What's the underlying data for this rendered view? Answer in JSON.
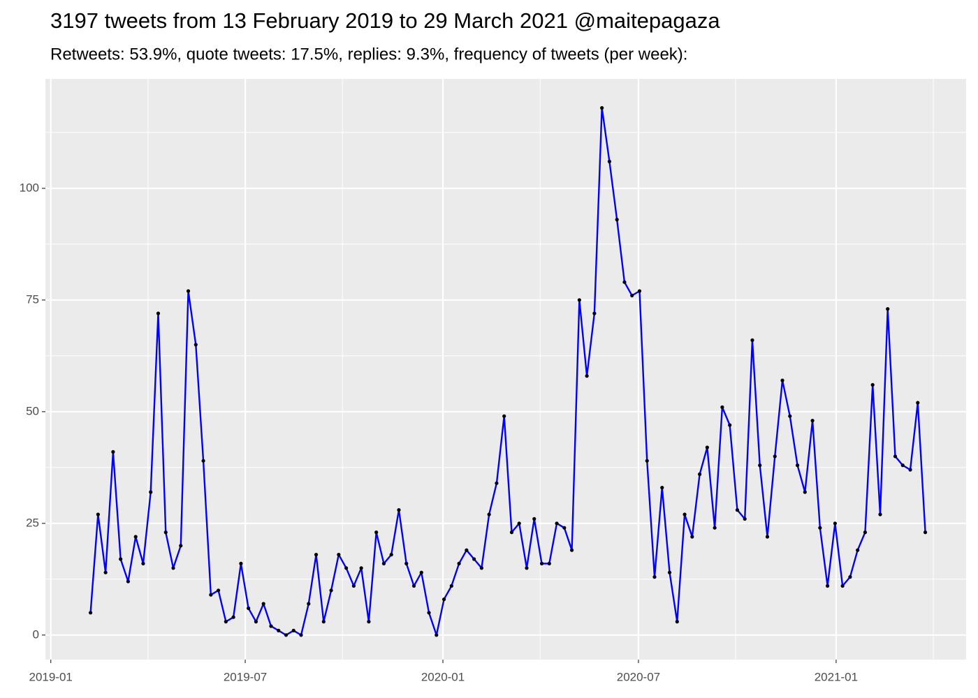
{
  "chart_data": {
    "type": "line",
    "title": "3197 tweets from 13 February 2019 to 29 March 2021 @maitepagaza",
    "subtitle": "Retweets: 53.9%, quote tweets: 17.5%, replies: 9.3%, frequency of tweets (per week):",
    "x": [
      "2019-02-07",
      "2019-02-14",
      "2019-02-21",
      "2019-02-28",
      "2019-03-07",
      "2019-03-14",
      "2019-03-21",
      "2019-03-28",
      "2019-04-04",
      "2019-04-11",
      "2019-04-18",
      "2019-04-25",
      "2019-05-02",
      "2019-05-09",
      "2019-05-16",
      "2019-05-23",
      "2019-05-30",
      "2019-06-06",
      "2019-06-13",
      "2019-06-20",
      "2019-06-27",
      "2019-07-04",
      "2019-07-11",
      "2019-07-18",
      "2019-07-25",
      "2019-08-01",
      "2019-08-08",
      "2019-08-15",
      "2019-08-22",
      "2019-08-29",
      "2019-09-05",
      "2019-09-12",
      "2019-09-19",
      "2019-09-26",
      "2019-10-03",
      "2019-10-10",
      "2019-10-17",
      "2019-10-24",
      "2019-10-31",
      "2019-11-07",
      "2019-11-14",
      "2019-11-21",
      "2019-11-28",
      "2019-12-05",
      "2019-12-12",
      "2019-12-19",
      "2019-12-26",
      "2020-01-02",
      "2020-01-09",
      "2020-01-16",
      "2020-01-23",
      "2020-01-30",
      "2020-02-06",
      "2020-02-13",
      "2020-02-20",
      "2020-02-27",
      "2020-03-05",
      "2020-03-12",
      "2020-03-19",
      "2020-03-26",
      "2020-04-02",
      "2020-04-09",
      "2020-04-16",
      "2020-04-23",
      "2020-04-30",
      "2020-05-07",
      "2020-05-14",
      "2020-05-21",
      "2020-05-28",
      "2020-06-04",
      "2020-06-11",
      "2020-06-18",
      "2020-06-25",
      "2020-07-02",
      "2020-07-09",
      "2020-07-16",
      "2020-07-23",
      "2020-07-30",
      "2020-08-06",
      "2020-08-13",
      "2020-08-20",
      "2020-08-27",
      "2020-09-03",
      "2020-09-10",
      "2020-09-17",
      "2020-09-24",
      "2020-10-01",
      "2020-10-08",
      "2020-10-15",
      "2020-10-22",
      "2020-10-29",
      "2020-11-05",
      "2020-11-12",
      "2020-11-19",
      "2020-11-26",
      "2020-12-03",
      "2020-12-10",
      "2020-12-17",
      "2020-12-24",
      "2020-12-31",
      "2021-01-07",
      "2021-01-14",
      "2021-01-21",
      "2021-01-28",
      "2021-02-04",
      "2021-02-11",
      "2021-02-18",
      "2021-02-25",
      "2021-03-04",
      "2021-03-11",
      "2021-03-18",
      "2021-03-25"
    ],
    "series": [
      {
        "color": "#0000ff",
        "point_color": "#000000",
        "values": [
          5,
          27,
          14,
          41,
          17,
          12,
          22,
          16,
          32,
          72,
          23,
          15,
          20,
          77,
          65,
          39,
          9,
          10,
          3,
          4,
          16,
          6,
          3,
          7,
          2,
          1,
          0,
          1,
          0,
          7,
          18,
          3,
          10,
          18,
          15,
          11,
          15,
          3,
          23,
          16,
          18,
          28,
          16,
          11,
          14,
          5,
          0,
          8,
          11,
          16,
          19,
          17,
          15,
          27,
          34,
          49,
          23,
          25,
          15,
          26,
          16,
          16,
          25,
          24,
          19,
          75,
          58,
          72,
          118,
          106,
          93,
          79,
          76,
          77,
          39,
          13,
          33,
          14,
          3,
          27,
          22,
          36,
          42,
          24,
          51,
          47,
          28,
          26,
          66,
          38,
          22,
          40,
          57,
          49,
          38,
          32,
          48,
          24,
          11,
          25,
          11,
          13,
          19,
          23,
          56,
          27,
          73,
          40,
          38,
          37,
          52,
          23
        ]
      }
    ],
    "xlim": [
      "2018-12-27",
      "2021-05-02"
    ],
    "xticks": [
      {
        "value": "2019-01-01",
        "label": "2019-01"
      },
      {
        "value": "2019-07-01",
        "label": "2019-07"
      },
      {
        "value": "2020-01-01",
        "label": "2020-01"
      },
      {
        "value": "2020-07-01",
        "label": "2020-07"
      },
      {
        "value": "2021-01-01",
        "label": "2021-01"
      }
    ],
    "ylim": [
      -5.5,
      124.5
    ],
    "yticks": [
      0,
      25,
      50,
      75,
      100
    ],
    "grid": true
  }
}
